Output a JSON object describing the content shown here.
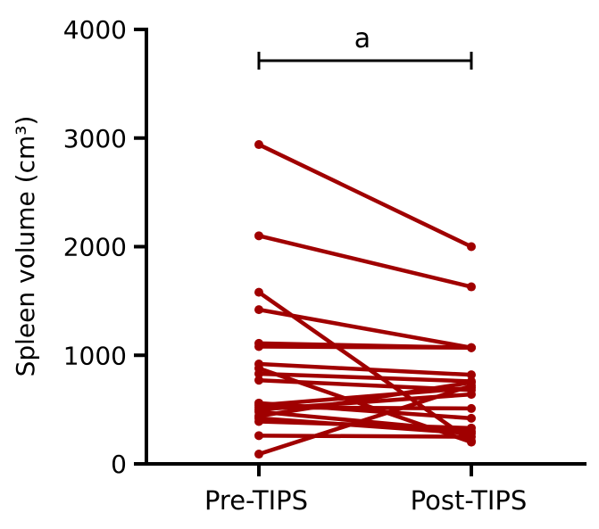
{
  "chart_data": {
    "type": "line",
    "title": "",
    "ylabel": "Spleen volume (cm³)",
    "xlabel": "",
    "categories": [
      "Pre-TIPS",
      "Post-TIPS"
    ],
    "ylim": [
      0,
      4000
    ],
    "yticks": [
      {
        "value": 0,
        "label": "0"
      },
      {
        "value": 1000,
        "label": "1000"
      },
      {
        "value": 2000,
        "label": "2000"
      },
      {
        "value": 3000,
        "label": "3000"
      },
      {
        "value": 4000,
        "label": "4000"
      }
    ],
    "series_color": "#a00000",
    "pairs": [
      [
        2940,
        2000
      ],
      [
        2100,
        1630
      ],
      [
        1580,
        210
      ],
      [
        1420,
        1070
      ],
      [
        1110,
        1070
      ],
      [
        1080,
        1070
      ],
      [
        920,
        820
      ],
      [
        880,
        200
      ],
      [
        830,
        760
      ],
      [
        770,
        680
      ],
      [
        560,
        420
      ],
      [
        540,
        700
      ],
      [
        520,
        510
      ],
      [
        500,
        640
      ],
      [
        480,
        300
      ],
      [
        440,
        750
      ],
      [
        420,
        280
      ],
      [
        390,
        330
      ],
      [
        260,
        250
      ],
      [
        90,
        720
      ]
    ],
    "significance": {
      "label": "a",
      "from": "Pre-TIPS",
      "to": "Post-TIPS"
    }
  }
}
